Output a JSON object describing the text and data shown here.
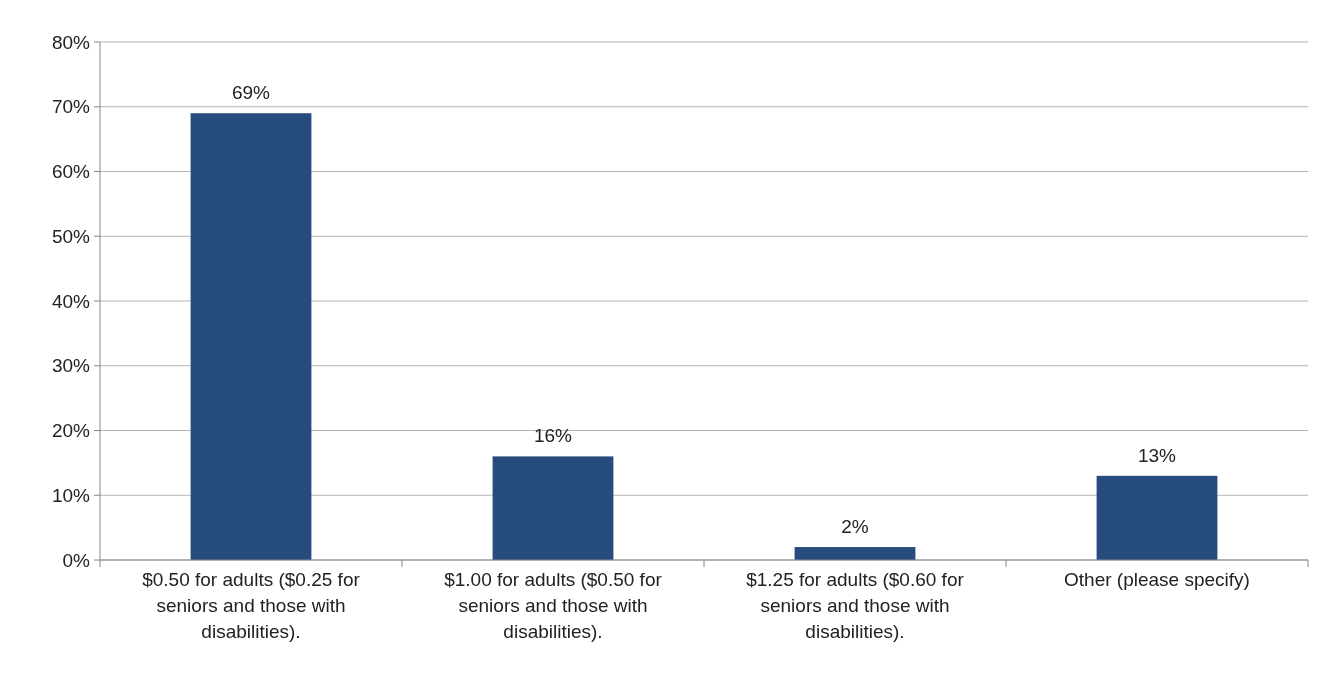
{
  "chart_data": {
    "type": "bar",
    "categories": [
      "$0.50 for adults ($0.25 for seniors and those with disabilities).",
      "$1.00 for adults ($0.50 for seniors and those with disabilities).",
      "$1.25 for adults ($0.60 for seniors and those with disabilities).",
      "Other (please specify)"
    ],
    "values": [
      69,
      16,
      2,
      13
    ],
    "color": "#264b7d",
    "ylim": [
      0,
      80
    ],
    "yticks": [
      {
        "value": 0,
        "label": "0%"
      },
      {
        "value": 10,
        "label": "10%"
      },
      {
        "value": 20,
        "label": "20%"
      },
      {
        "value": 30,
        "label": "30%"
      },
      {
        "value": 40,
        "label": "40%"
      },
      {
        "value": 50,
        "label": "50%"
      },
      {
        "value": 60,
        "label": "60%"
      },
      {
        "value": 70,
        "label": "70%"
      },
      {
        "value": 80,
        "label": "80%"
      }
    ],
    "grid": "y",
    "value_labels": [
      "69%",
      "16%",
      "2%",
      "13%"
    ]
  }
}
